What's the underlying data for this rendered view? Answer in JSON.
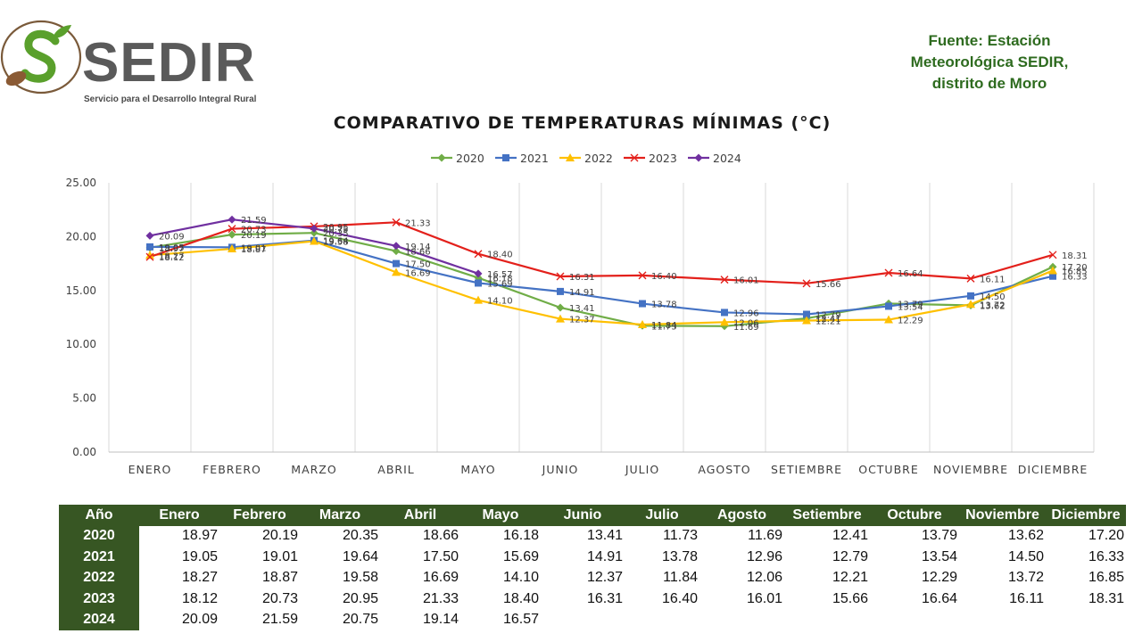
{
  "logo": {
    "name": "SEDIR",
    "tagline": "Servicio para el Desarrollo Integral Rural"
  },
  "source": {
    "line1": "Fuente: Estación",
    "line2": "Meteorológica SEDIR,",
    "line3": "distrito de Moro"
  },
  "chart_data": {
    "type": "line",
    "title": "COMPARATIVO DE TEMPERATURAS MÍNIMAS (°C)",
    "xlabel": "",
    "ylabel": "",
    "categories": [
      "ENERO",
      "FEBRERO",
      "MARZO",
      "ABRIL",
      "MAYO",
      "JUNIO",
      "JULIO",
      "AGOSTO",
      "SETIEMBRE",
      "OCTUBRE",
      "NOVIEMBRE",
      "DICIEMBRE"
    ],
    "ylim": [
      0,
      25
    ],
    "yticks": [
      "0.00",
      "5.00",
      "10.00",
      "15.00",
      "20.00",
      "25.00"
    ],
    "grid": "vertical",
    "legend_position": "top",
    "series": [
      {
        "name": "2020",
        "color": "#70ad47",
        "marker": "diamond",
        "values": [
          18.97,
          20.19,
          20.35,
          18.66,
          16.18,
          13.41,
          11.73,
          11.69,
          12.41,
          13.79,
          13.62,
          17.2
        ]
      },
      {
        "name": "2021",
        "color": "#4472c4",
        "marker": "square",
        "values": [
          19.05,
          19.01,
          19.64,
          17.5,
          15.69,
          14.91,
          13.78,
          12.96,
          12.79,
          13.54,
          14.5,
          16.33
        ]
      },
      {
        "name": "2022",
        "color": "#ffc000",
        "marker": "triangle",
        "values": [
          18.27,
          18.87,
          19.58,
          16.69,
          14.1,
          12.37,
          11.84,
          12.06,
          12.21,
          12.29,
          13.72,
          16.85
        ]
      },
      {
        "name": "2023",
        "color": "#e3201b",
        "marker": "x",
        "values": [
          18.12,
          20.73,
          20.95,
          21.33,
          18.4,
          16.31,
          16.4,
          16.01,
          15.66,
          16.64,
          16.11,
          18.31
        ]
      },
      {
        "name": "2024",
        "color": "#7030a0",
        "marker": "diamond",
        "values": [
          20.09,
          21.59,
          20.75,
          19.14,
          16.57,
          null,
          null,
          null,
          null,
          null,
          null,
          null
        ]
      }
    ]
  },
  "table": {
    "header": [
      "Año",
      "Enero",
      "Febrero",
      "Marzo",
      "Abril",
      "Mayo",
      "Junio",
      "Julio",
      "Agosto",
      "Setiembre",
      "Octubre",
      "Noviembre",
      "Diciembre"
    ],
    "rows": [
      {
        "year": "2020",
        "cells": [
          "18.97",
          "20.19",
          "20.35",
          "18.66",
          "16.18",
          "13.41",
          "11.73",
          "11.69",
          "12.41",
          "13.79",
          "13.62",
          "17.20"
        ]
      },
      {
        "year": "2021",
        "cells": [
          "19.05",
          "19.01",
          "19.64",
          "17.50",
          "15.69",
          "14.91",
          "13.78",
          "12.96",
          "12.79",
          "13.54",
          "14.50",
          "16.33"
        ]
      },
      {
        "year": "2022",
        "cells": [
          "18.27",
          "18.87",
          "19.58",
          "16.69",
          "14.10",
          "12.37",
          "11.84",
          "12.06",
          "12.21",
          "12.29",
          "13.72",
          "16.85"
        ]
      },
      {
        "year": "2023",
        "cells": [
          "18.12",
          "20.73",
          "20.95",
          "21.33",
          "18.40",
          "16.31",
          "16.40",
          "16.01",
          "15.66",
          "16.64",
          "16.11",
          "18.31"
        ]
      },
      {
        "year": "2024",
        "cells": [
          "20.09",
          "21.59",
          "20.75",
          "19.14",
          "16.57",
          "",
          "",
          "",
          "",
          "",
          "",
          ""
        ]
      }
    ]
  }
}
